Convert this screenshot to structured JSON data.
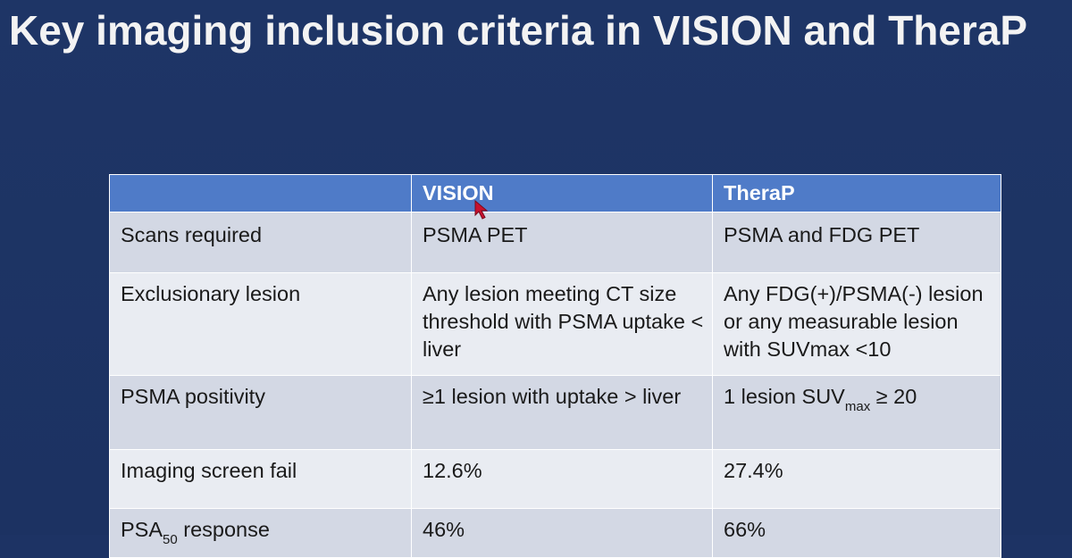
{
  "slide": {
    "title": "Key imaging inclusion criteria in VISION and TheraP"
  },
  "table": {
    "headers": [
      "",
      "VISION",
      "TheraP"
    ],
    "rows": [
      {
        "label": "Scans required",
        "vision": "PSMA PET",
        "therap": "PSMA and FDG PET"
      },
      {
        "label": "Exclusionary lesion",
        "vision": "Any lesion meeting CT size threshold with PSMA uptake < liver",
        "therap": "Any FDG(+)/PSMA(-) lesion or any measurable lesion with SUVmax <10"
      },
      {
        "label": "PSMA positivity",
        "vision": "≥1 lesion with uptake > liver",
        "therap_pre": "1 lesion SUV",
        "therap_sub": "max",
        "therap_post": " ≥ 20"
      },
      {
        "label": "Imaging screen fail",
        "vision": "12.6%",
        "therap": "27.4%"
      },
      {
        "label_pre": "PSA",
        "label_sub": "50",
        "label_post": " response",
        "vision": "46%",
        "therap": "66%"
      }
    ]
  },
  "colors": {
    "background": "#1d3364",
    "header": "#4f7bc8",
    "row_dark": "#d3d8e4",
    "row_light": "#e9ecf2",
    "cursor": "#c8102e"
  },
  "icons": {
    "cursor": "arrow-cursor-icon"
  }
}
